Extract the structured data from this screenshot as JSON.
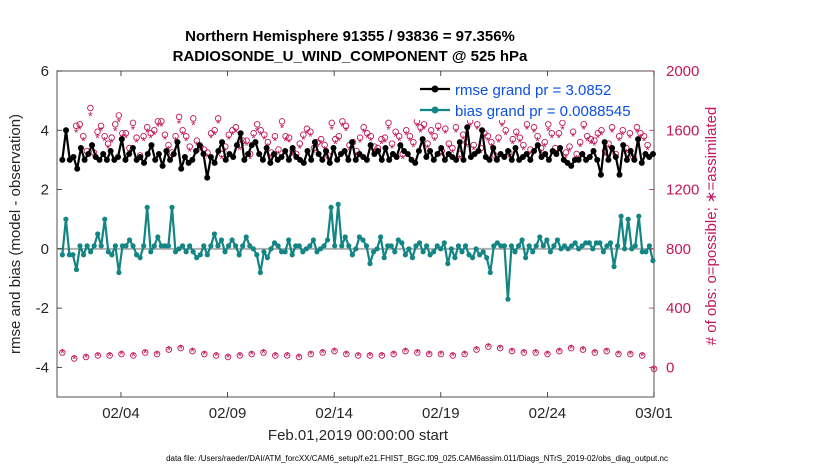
{
  "chart_data": {
    "type": "line",
    "title": "Northern Hemisphere 91355 / 93836 = 97.356%",
    "subtitle": "RADIOSONDE_U_WIND_COMPONENT @ 525 hPa",
    "xlabel": "Feb.01,2019 00:00:00 start",
    "ylabel_left": "rmse and bias (model - observation)",
    "ylabel_right": "# of obs: o=possible; ∗=assimilated",
    "ylim_left": [
      -5,
      6
    ],
    "ylim_right": [
      -200,
      2000
    ],
    "x_range_days": [
      1,
      29
    ],
    "x_ticks": [
      {
        "day": 4,
        "label": "02/04"
      },
      {
        "day": 9,
        "label": "02/09"
      },
      {
        "day": 14,
        "label": "02/14"
      },
      {
        "day": 19,
        "label": "02/19"
      },
      {
        "day": 24,
        "label": "02/24"
      },
      {
        "day": 29,
        "label": "03/01"
      }
    ],
    "y_ticks_left": [
      "-4",
      "-2",
      "0",
      "2",
      "4",
      "6"
    ],
    "y_ticks_right": [
      "0",
      "400",
      "800",
      "1200",
      "1600",
      "2000"
    ],
    "legend": [
      {
        "name": "rmse",
        "label": "rmse grand pr = 3.0852",
        "color": "#000000"
      },
      {
        "name": "bias",
        "label": "bias grand pr = 0.0088545",
        "color": "#138585"
      }
    ],
    "colors": {
      "rmse": "#000000",
      "bias": "#138585",
      "counts": "#c2185b",
      "zero_line": "#b0b0b0"
    },
    "series": [
      {
        "name": "rmse",
        "axis": "left",
        "values": [
          3.0,
          4.0,
          3.0,
          3.1,
          2.7,
          3.4,
          3.0,
          3.2,
          3.5,
          3.1,
          3.0,
          3.2,
          3.0,
          3.3,
          3.0,
          3.1,
          3.7,
          3.0,
          3.2,
          3.4,
          3.0,
          3.1,
          2.9,
          3.2,
          3.5,
          3.0,
          3.2,
          2.8,
          3.3,
          3.0,
          3.2,
          3.6,
          2.7,
          3.1,
          2.9,
          3.0,
          3.3,
          3.5,
          3.2,
          2.4,
          3.1,
          2.9,
          3.3,
          3.6,
          3.0,
          3.2,
          3.1,
          3.5,
          3.9,
          3.0,
          3.2,
          3.5,
          3.6,
          3.2,
          3.0,
          3.4,
          2.9,
          3.2,
          3.0,
          3.1,
          3.3,
          3.0,
          3.4,
          3.1,
          3.0,
          2.9,
          3.3,
          3.0,
          3.6,
          3.2,
          3.0,
          3.3,
          2.9,
          3.4,
          3.0,
          3.2,
          3.3,
          3.0,
          3.6,
          3.0,
          3.2,
          3.1,
          3.0,
          3.5,
          3.2,
          3.3,
          3.0,
          3.4,
          3.0,
          3.2,
          3.1,
          3.5,
          3.3,
          3.2,
          3.0,
          2.9,
          3.3,
          3.7,
          3.1,
          3.3,
          3.0,
          3.2,
          3.4,
          3.0,
          3.2,
          3.1,
          3.0,
          3.6,
          3.0,
          4.1,
          3.1,
          3.2,
          3.3,
          4.0,
          3.1,
          3.0,
          3.4,
          3.0,
          3.2,
          3.1,
          3.3,
          3.0,
          3.4,
          3.0,
          3.1,
          3.2,
          3.0,
          3.3,
          3.5,
          3.1,
          3.2,
          3.0,
          3.3,
          3.2,
          3.4,
          3.0,
          2.9,
          2.8,
          3.0,
          3.0,
          3.2,
          3.0,
          3.1,
          3.3,
          3.0,
          2.5,
          3.6,
          3.0,
          3.4,
          3.1,
          2.5,
          3.5,
          3.0,
          3.3,
          3.0,
          3.7,
          2.9,
          3.2,
          3.1,
          3.2
        ]
      },
      {
        "name": "bias",
        "axis": "left",
        "values": [
          -0.2,
          1.0,
          -0.2,
          -0.2,
          -0.7,
          0.1,
          -0.2,
          0.1,
          -0.1,
          0.1,
          0.5,
          0.1,
          1.0,
          -0.1,
          -0.2,
          0.1,
          -0.8,
          0.1,
          0.1,
          0.3,
          0.1,
          -0.2,
          -0.3,
          0.1,
          1.4,
          -0.1,
          0.1,
          0.4,
          0.1,
          0.1,
          0.1,
          1.4,
          -0.1,
          0.0,
          0.1,
          -0.1,
          0.1,
          -0.1,
          -0.3,
          -0.2,
          0.1,
          -0.2,
          0.1,
          0.5,
          0.1,
          0.3,
          -0.1,
          0.1,
          0.3,
          0.1,
          -0.2,
          0.1,
          0.4,
          0.1,
          0.0,
          -0.2,
          -0.8,
          -0.1,
          -0.3,
          0.0,
          0.2,
          0.1,
          -0.1,
          -0.1,
          0.3,
          -0.2,
          0.1,
          0.1,
          -0.1,
          0.0,
          0.1,
          0.3,
          -0.1,
          0.0,
          0.1,
          0.3,
          1.4,
          0.1,
          1.5,
          0.1,
          0.4,
          0.1,
          -0.2,
          0.0,
          0.4,
          0.3,
          0.1,
          -0.5,
          -0.1,
          0.0,
          0.4,
          -0.3,
          0.1,
          0.1,
          -0.1,
          0.3,
          0.2,
          -0.2,
          0.0,
          -0.3,
          0.1,
          0.2,
          -0.1,
          0.1,
          -0.2,
          -0.1,
          0.1,
          0.0,
          0.2,
          -0.5,
          0.0,
          -0.3,
          0.1,
          -0.1,
          0.1,
          -0.2,
          -0.3,
          0.0,
          -0.2,
          -0.1,
          -0.3,
          -0.8,
          0.1,
          0.2,
          0.1,
          0.1,
          -1.7,
          0.1,
          -0.1,
          0.1,
          0.3,
          -0.3,
          0.1,
          -0.1,
          0.1,
          0.4,
          0.1,
          0.3,
          -0.1,
          0.1,
          0.3,
          0.0,
          0.1,
          0.0,
          0.1,
          0.2,
          0.0,
          0.1,
          0.2,
          0.2,
          0.0,
          0.2,
          0.2,
          -0.1,
          0.1,
          0.2,
          -0.6,
          0.1,
          1.1,
          0.0,
          1.0,
          0.0,
          0.1,
          1.1,
          -0.1,
          -0.1,
          0.1,
          -0.4
        ]
      },
      {
        "name": "possible_obs",
        "axis": "right",
        "marker": "o",
        "values": [
          1630,
          1640,
          1560,
          1460,
          1750,
          1450,
          1590,
          1630,
          1560,
          1510,
          1550,
          1640,
          1700,
          1580,
          1580,
          1480,
          1650,
          1550,
          1430,
          1560,
          1620,
          1580,
          1600,
          1660,
          1660,
          1570,
          1500,
          1450,
          1560,
          1690,
          1600,
          1560,
          1490,
          1680,
          1530,
          1490,
          1470,
          1450,
          1580,
          1600,
          1680,
          1440,
          1490,
          1570,
          1600,
          1620,
          1500,
          1530,
          1530,
          1440,
          1580,
          1640,
          1600,
          1570,
          1520,
          1450,
          1560,
          1470,
          1660,
          1560,
          1550,
          1460,
          1440,
          1510,
          1570,
          1610,
          1590,
          1480,
          1520,
          1540,
          1500,
          1430,
          1650,
          1540,
          1560,
          1660,
          1630,
          1500,
          1520,
          1460,
          1550,
          1620,
          1580,
          1560,
          1490,
          1480,
          1540,
          1550,
          1650,
          1510,
          1590,
          1560,
          1440,
          1600,
          1560,
          1520,
          1660,
          1620,
          1640,
          1510,
          1600,
          1560,
          1630,
          1460,
          1610,
          1510,
          1480,
          1620,
          1440,
          1570,
          1520,
          1660,
          1500,
          1640,
          1480,
          1580,
          1560,
          1520,
          1430,
          1550,
          1660,
          1600,
          1450,
          1540,
          1590,
          1550,
          1500,
          1640,
          1470,
          1620,
          1560,
          1480,
          1520,
          1640,
          1580,
          1480,
          1580,
          1650,
          1450,
          1490,
          1590,
          1440,
          1520,
          1640,
          1560,
          1540,
          1530,
          1580,
          1600,
          1460,
          1510,
          1620,
          1440,
          1560,
          1600,
          1480,
          1580,
          1420,
          1620,
          1580,
          1560,
          1500
        ]
      },
      {
        "name": "assimilated_obs",
        "axis": "right",
        "marker": "*",
        "values": [
          1590,
          1610,
          1530,
          1430,
          1700,
          1420,
          1550,
          1600,
          1530,
          1480,
          1520,
          1600,
          1660,
          1550,
          1550,
          1450,
          1610,
          1520,
          1400,
          1530,
          1590,
          1550,
          1570,
          1630,
          1630,
          1540,
          1470,
          1420,
          1530,
          1650,
          1570,
          1530,
          1460,
          1640,
          1500,
          1460,
          1440,
          1420,
          1550,
          1570,
          1650,
          1410,
          1460,
          1540,
          1570,
          1590,
          1470,
          1500,
          1500,
          1410,
          1550,
          1600,
          1570,
          1540,
          1490,
          1420,
          1530,
          1440,
          1620,
          1530,
          1520,
          1430,
          1410,
          1480,
          1540,
          1580,
          1560,
          1450,
          1490,
          1510,
          1470,
          1400,
          1610,
          1510,
          1530,
          1630,
          1600,
          1470,
          1490,
          1430,
          1520,
          1590,
          1550,
          1530,
          1460,
          1450,
          1510,
          1520,
          1610,
          1480,
          1560,
          1530,
          1410,
          1570,
          1530,
          1490,
          1630,
          1590,
          1610,
          1480,
          1570,
          1530,
          1600,
          1430,
          1580,
          1480,
          1450,
          1590,
          1410,
          1540,
          1490,
          1630,
          1470,
          1610,
          1450,
          1550,
          1530,
          1490,
          1400,
          1520,
          1630,
          1570,
          1420,
          1510,
          1560,
          1520,
          1470,
          1610,
          1440,
          1590,
          1530,
          1450,
          1490,
          1600,
          1550,
          1450,
          1550,
          1610,
          1420,
          1460,
          1560,
          1410,
          1490,
          1610,
          1530,
          1510,
          1500,
          1550,
          1570,
          1430,
          1480,
          1590,
          1410,
          1530,
          1570,
          1450,
          1550,
          1390,
          1590,
          1550,
          1530,
          1470
        ]
      },
      {
        "name": "possible_obs_low",
        "axis": "right",
        "marker": "o",
        "values": [
          100,
          60,
          70,
          80,
          80,
          90,
          80,
          100,
          90,
          120,
          130,
          110,
          90,
          80,
          70,
          80,
          90,
          100,
          80,
          80,
          70,
          90,
          100,
          110,
          90,
          80,
          80,
          80,
          90,
          110,
          100,
          90,
          90,
          80,
          90,
          120,
          140,
          130,
          110,
          100,
          100,
          90,
          110,
          130,
          120,
          100,
          110,
          90,
          90,
          80,
          -10
        ]
      },
      {
        "name": "assimilated_obs_low",
        "axis": "right",
        "marker": "*",
        "values": [
          100,
          60,
          70,
          80,
          80,
          90,
          80,
          100,
          90,
          120,
          130,
          110,
          90,
          80,
          70,
          80,
          90,
          100,
          80,
          80,
          70,
          90,
          100,
          110,
          90,
          80,
          80,
          80,
          90,
          110,
          100,
          90,
          90,
          80,
          90,
          120,
          140,
          130,
          110,
          100,
          100,
          90,
          110,
          130,
          120,
          100,
          110,
          90,
          90,
          80,
          -10
        ]
      }
    ]
  },
  "footer": "data file: /Users/raeder/DAI/ATM_forcXX/CAM6_setup/f.e21.FHIST_BGC.f09_025.CAM6assim.011/Diags_NTrS_2019-02/obs_diag_output.nc"
}
